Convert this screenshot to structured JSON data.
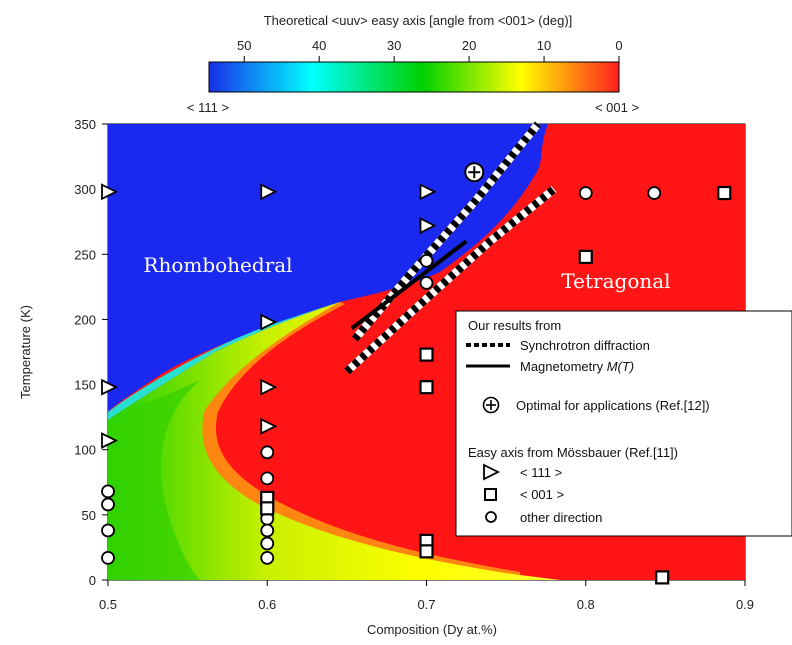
{
  "chart_data": {
    "type": "heatmap",
    "title": "",
    "xlabel": "Composition (Dy at.%)",
    "ylabel": "Temperature (K)",
    "xlim": [
      0.5,
      0.9
    ],
    "ylim": [
      0,
      350
    ],
    "x_ticks": [
      "0.5",
      "0.6",
      "0.7",
      "0.8",
      "0.9"
    ],
    "y_ticks": [
      "0",
      "50",
      "100",
      "150",
      "200",
      "250",
      "300",
      "350"
    ],
    "colorbar": {
      "title": "Theoretical <uuv> easy axis [angle from <001> (deg)]",
      "ticks": [
        "50",
        "40",
        "30",
        "20",
        "10",
        "0"
      ],
      "range": [
        54.7,
        0
      ],
      "left_label": "< 111 >",
      "right_label": "< 001 >",
      "colors": [
        "#1a2fe8",
        "#00ffff",
        "#00d000",
        "#ffff00",
        "#ff2020"
      ]
    },
    "regions": [
      {
        "name": "Rhombohedral"
      },
      {
        "name": "Tetragonal"
      }
    ],
    "boundary": [
      [
        0.5,
        125
      ],
      [
        0.56,
        150
      ],
      [
        0.6,
        168
      ],
      [
        0.64,
        188
      ],
      [
        0.66,
        205
      ],
      [
        0.7,
        240
      ],
      [
        0.74,
        280
      ],
      [
        0.77,
        320
      ],
      [
        0.775,
        350
      ]
    ],
    "synchrotron_lines": [
      [
        [
          0.655,
          185
        ],
        [
          0.69,
          235
        ],
        [
          0.73,
          290
        ],
        [
          0.77,
          350
        ]
      ],
      [
        [
          0.65,
          160
        ],
        [
          0.69,
          205
        ],
        [
          0.74,
          260
        ],
        [
          0.78,
          300
        ]
      ]
    ],
    "magnetometry_line": [
      [
        0.653,
        193
      ],
      [
        0.725,
        260
      ]
    ],
    "optimal_point": {
      "x": 0.73,
      "y": 313
    },
    "mossbauer": {
      "triangle_111": [
        [
          0.5,
          298
        ],
        [
          0.5,
          148
        ],
        [
          0.5,
          107
        ],
        [
          0.6,
          298
        ],
        [
          0.6,
          198
        ],
        [
          0.6,
          148
        ],
        [
          0.6,
          118
        ],
        [
          0.7,
          298
        ],
        [
          0.7,
          272
        ]
      ],
      "square_001": [
        [
          0.6,
          63
        ],
        [
          0.6,
          55
        ],
        [
          0.7,
          173
        ],
        [
          0.7,
          148
        ],
        [
          0.7,
          30
        ],
        [
          0.7,
          22
        ],
        [
          0.8,
          248
        ],
        [
          0.887,
          297
        ],
        [
          0.848,
          2
        ]
      ],
      "circle_other": [
        [
          0.5,
          68
        ],
        [
          0.5,
          58
        ],
        [
          0.5,
          38
        ],
        [
          0.5,
          17
        ],
        [
          0.6,
          98
        ],
        [
          0.6,
          78
        ],
        [
          0.6,
          47
        ],
        [
          0.6,
          38
        ],
        [
          0.6,
          28
        ],
        [
          0.6,
          17
        ],
        [
          0.7,
          245
        ],
        [
          0.7,
          228
        ],
        [
          0.8,
          297
        ],
        [
          0.843,
          297
        ]
      ]
    }
  },
  "labels": {
    "rhombohedral": "Rhombohedral",
    "tetragonal": "Tetragonal"
  },
  "legend": {
    "header": "Our results from",
    "synchrotron": "Synchrotron diffraction",
    "magnetometry_prefix": "Magnetometry ",
    "magnetometry_symbol": "M(T)",
    "optimal": "Optimal for applications (Ref.[12])",
    "mossbauer_header": "Easy axis from Mössbauer (Ref.[11])",
    "triangle": "< 111 >",
    "square": "< 001 >",
    "circle": "other direction"
  }
}
